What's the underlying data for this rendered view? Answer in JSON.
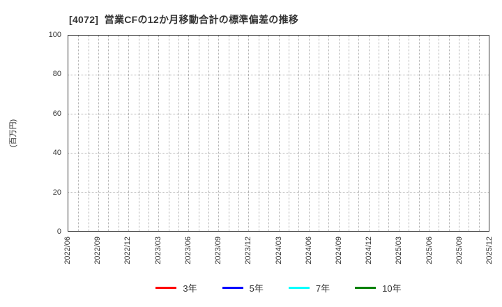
{
  "chart_data": {
    "type": "line",
    "title": "[4072]  営業CFの12か月移動合計の標準偏差の推移",
    "ylabel": "(百万円)",
    "x_tick_labels": [
      "2022/06",
      "2022/09",
      "2022/12",
      "2023/03",
      "2023/06",
      "2023/09",
      "2023/12",
      "2024/03",
      "2024/06",
      "2024/09",
      "2024/12",
      "2025/03",
      "2025/06",
      "2025/09",
      "2025/12"
    ],
    "x_major_tick_interval_months": 3,
    "x_minor_gridline_interval_months": 1,
    "y_ticks": [
      0,
      20,
      40,
      60,
      80,
      100
    ],
    "ylim": [
      0,
      100
    ],
    "grid": true,
    "gridline_color": "#b0b0b0",
    "axis_color": "#333333",
    "text_color": "#333333",
    "legend_position": "bottom",
    "series": [
      {
        "name": "3年",
        "color": "#ff0000",
        "values": []
      },
      {
        "name": "5年",
        "color": "#0000ff",
        "values": []
      },
      {
        "name": "7年",
        "color": "#00ffff",
        "values": []
      },
      {
        "name": "10年",
        "color": "#008000",
        "values": []
      }
    ]
  }
}
